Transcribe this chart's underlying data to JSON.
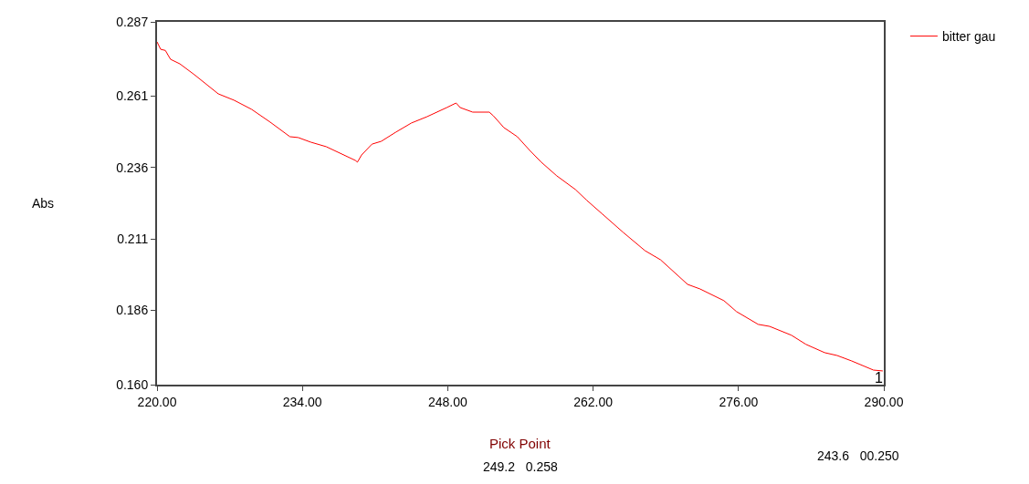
{
  "chart_data": {
    "type": "line",
    "ylabel": "Abs",
    "x": [
      220,
      220.35,
      220.8,
      221.3,
      222.2,
      223.6,
      225.9,
      227.4,
      229.1,
      230.9,
      232.8,
      233.6,
      234.8,
      236.3,
      239.1,
      239.3,
      239.7,
      240.7,
      241.6,
      243.0,
      244.5,
      246.0,
      247.9,
      248.8,
      249.2,
      250.4,
      252.0,
      252.4,
      253.4,
      254.7,
      255.9,
      257.0,
      258.5,
      260.3,
      261.4,
      262.9,
      264.9,
      267.0,
      268.5,
      271.1,
      272.3,
      274.6,
      275.8,
      277.9,
      279.0,
      281.1,
      282.5,
      284.3,
      285.5,
      286.9,
      289.0,
      289.9
    ],
    "series": [
      {
        "name": "bitter gau",
        "color": "#ff0000",
        "values": [
          0.28,
          0.2774,
          0.277,
          0.2739,
          0.2723,
          0.2685,
          0.2618,
          0.2596,
          0.2564,
          0.2519,
          0.2468,
          0.2465,
          0.2449,
          0.2433,
          0.2385,
          0.2379,
          0.2404,
          0.2442,
          0.2452,
          0.2484,
          0.2516,
          0.2538,
          0.257,
          0.2586,
          0.257,
          0.2554,
          0.2554,
          0.2541,
          0.25,
          0.2468,
          0.242,
          0.2379,
          0.2331,
          0.2283,
          0.2245,
          0.2197,
          0.2133,
          0.2069,
          0.2037,
          0.1951,
          0.1935,
          0.1894,
          0.1856,
          0.1811,
          0.1804,
          0.1773,
          0.1741,
          0.1712,
          0.1702,
          0.1683,
          0.1651,
          0.1648
        ]
      }
    ],
    "xlim": [
      220,
      290
    ],
    "xticks": [
      {
        "value": 220,
        "label": "220.00"
      },
      {
        "value": 234,
        "label": "234.00"
      },
      {
        "value": 248,
        "label": "248.00"
      },
      {
        "value": 262,
        "label": "262.00"
      },
      {
        "value": 276,
        "label": "276.00"
      },
      {
        "value": 290,
        "label": "290.00"
      }
    ],
    "ylim": [
      0.16,
      0.287
    ],
    "yticks": [
      {
        "value": 0.16,
        "label": "0.160"
      },
      0.186,
      0.211,
      0.236,
      0.261,
      0.287
    ],
    "legend": "top right",
    "marker": "none",
    "line_style": "solid",
    "annotations": [
      "1",
      "Pick Point",
      "249.2   0.258",
      "243.6   00.250"
    ]
  }
}
